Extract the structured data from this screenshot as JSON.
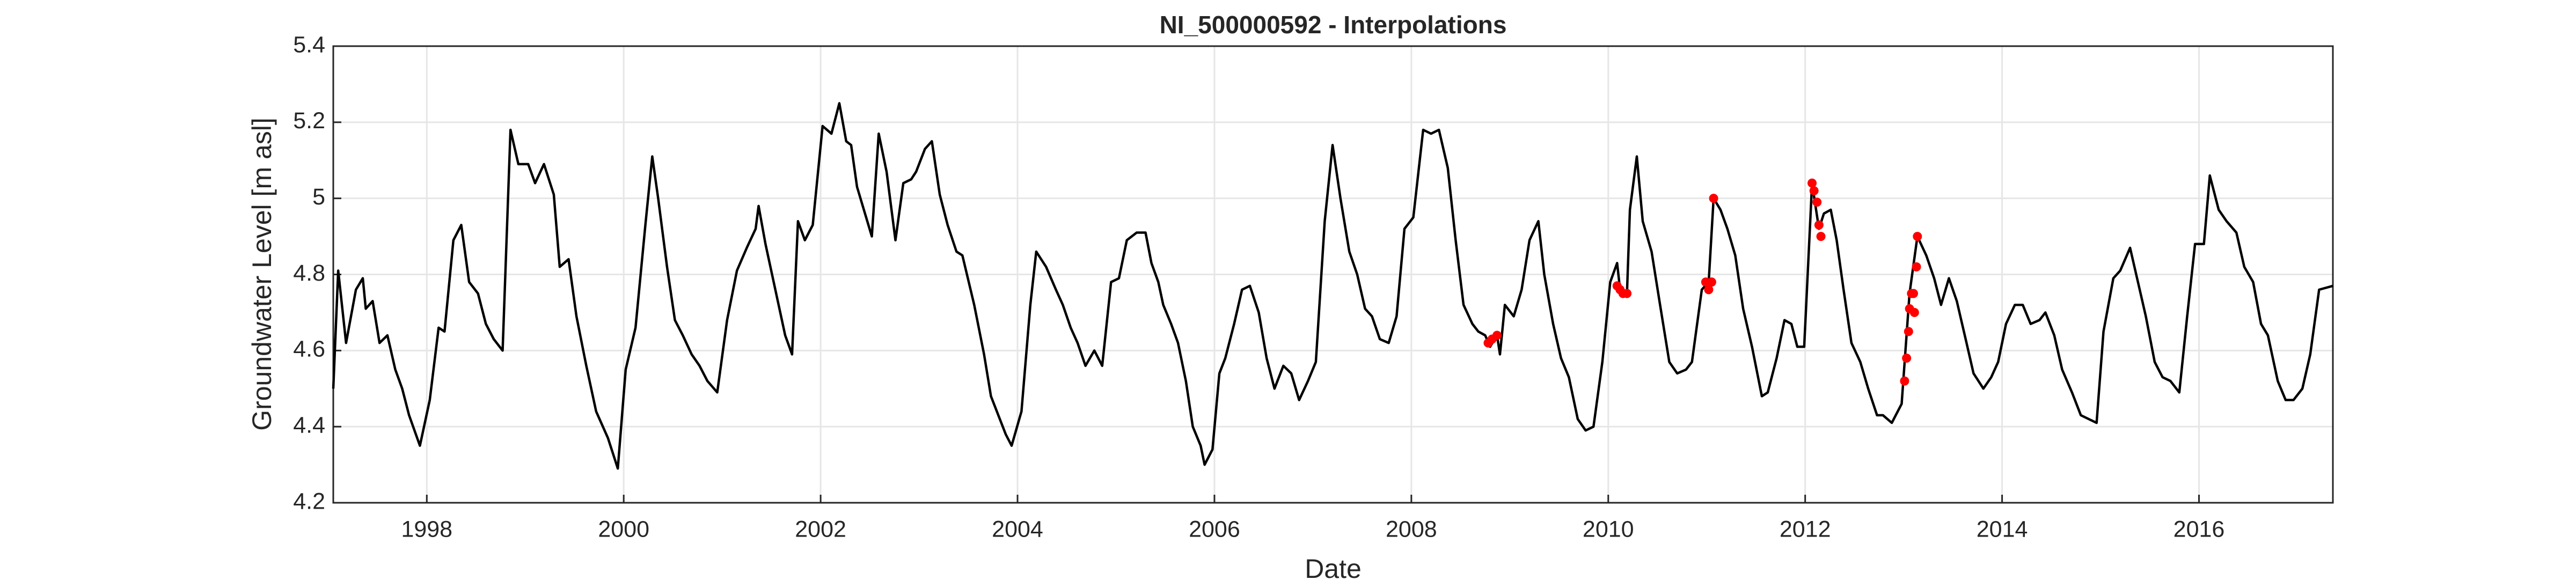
{
  "chart_data": {
    "type": "line",
    "title": "NI_500000592 - Interpolations",
    "x_label": "Date",
    "y_label": "Groundwater Level [m asl]",
    "xlim": [
      1997.05,
      2017.36
    ],
    "xticks": [
      1998,
      2000,
      2002,
      2004,
      2006,
      2008,
      2010,
      2012,
      2014,
      2016
    ],
    "ylim": [
      4.2,
      5.4
    ],
    "yticks": [
      4.2,
      4.4,
      4.6,
      4.8,
      5,
      5.2,
      5.4
    ],
    "grid": true,
    "series": [
      {
        "color": "#000000",
        "marker": "none",
        "x": [
          1997.05,
          1997.1,
          1997.18,
          1997.28,
          1997.35,
          1997.38,
          1997.45,
          1997.52,
          1997.6,
          1997.68,
          1997.75,
          1997.82,
          1997.93,
          1998.03,
          1998.12,
          1998.18,
          1998.27,
          1998.35,
          1998.43,
          1998.52,
          1998.6,
          1998.68,
          1998.77,
          1998.85,
          1998.93,
          1999.03,
          1999.1,
          1999.19,
          1999.29,
          1999.35,
          1999.44,
          1999.52,
          1999.62,
          1999.72,
          1999.84,
          1999.94,
          2000.02,
          2000.12,
          2000.22,
          2000.29,
          2000.35,
          2000.44,
          2000.52,
          2000.6,
          2000.69,
          2000.77,
          2000.85,
          2000.95,
          2001.05,
          2001.15,
          2001.25,
          2001.34,
          2001.37,
          2001.44,
          2001.54,
          2001.64,
          2001.71,
          2001.77,
          2001.84,
          2001.92,
          2002.02,
          2002.11,
          2002.19,
          2002.26,
          2002.31,
          2002.37,
          2002.52,
          2002.59,
          2002.67,
          2002.76,
          2002.84,
          2002.92,
          2002.97,
          2003.06,
          2003.13,
          2003.21,
          2003.29,
          2003.38,
          2003.44,
          2003.56,
          2003.66,
          2003.73,
          2003.79,
          2003.88,
          2003.94,
          2004.04,
          2004.13,
          2004.19,
          2004.29,
          2004.39,
          2004.46,
          2004.54,
          2004.61,
          2004.69,
          2004.78,
          2004.86,
          2004.95,
          2005.03,
          2005.11,
          2005.21,
          2005.3,
          2005.36,
          2005.43,
          2005.48,
          2005.56,
          2005.63,
          2005.71,
          2005.78,
          2005.86,
          2005.9,
          2005.98,
          2006.05,
          2006.11,
          2006.2,
          2006.28,
          2006.36,
          2006.45,
          2006.53,
          2006.61,
          2006.7,
          2006.78,
          2006.86,
          2006.95,
          2007.03,
          2007.12,
          2007.2,
          2007.28,
          2007.37,
          2007.45,
          2007.53,
          2007.6,
          2007.68,
          2007.77,
          2007.85,
          2007.93,
          2008.02,
          2008.12,
          2008.2,
          2008.28,
          2008.37,
          2008.45,
          2008.53,
          2008.62,
          2008.68,
          2008.75,
          2008.8,
          2008.87,
          2008.9,
          2008.95,
          2009.04,
          2009.12,
          2009.2,
          2009.29,
          2009.35,
          2009.44,
          2009.52,
          2009.6,
          2009.69,
          2009.77,
          2009.85,
          2009.94,
          2010.02,
          2010.09,
          2010.12,
          2010.19,
          2010.22,
          2010.29,
          2010.35,
          2010.44,
          2010.52,
          2010.62,
          2010.7,
          2010.79,
          2010.85,
          2010.95,
          2011.02,
          2011.07,
          2011.14,
          2011.21,
          2011.29,
          2011.37,
          2011.46,
          2011.56,
          2011.62,
          2011.71,
          2011.79,
          2011.86,
          2011.92,
          2011.99,
          2012.07,
          2012.14,
          2012.19,
          2012.26,
          2012.32,
          2012.39,
          2012.47,
          2012.56,
          2012.64,
          2012.73,
          2012.79,
          2012.88,
          2012.98,
          2013.06,
          2013.14,
          2013.23,
          2013.31,
          2013.38,
          2013.46,
          2013.54,
          2013.63,
          2013.71,
          2013.81,
          2013.89,
          2013.96,
          2014.04,
          2014.13,
          2014.21,
          2014.29,
          2014.38,
          2014.44,
          2014.53,
          2014.61,
          2014.71,
          2014.8,
          2014.88,
          2014.96,
          2015.03,
          2015.13,
          2015.2,
          2015.3,
          2015.38,
          2015.46,
          2015.55,
          2015.63,
          2015.71,
          2015.8,
          2015.88,
          2015.96,
          2016.05,
          2016.11,
          2016.2,
          2016.28,
          2016.38,
          2016.46,
          2016.55,
          2016.63,
          2016.7,
          2016.8,
          2016.88,
          2016.96,
          2017.05,
          2017.13,
          2017.22,
          2017.36
        ],
        "values": [
          4.5,
          4.81,
          4.62,
          4.76,
          4.79,
          4.71,
          4.73,
          4.62,
          4.64,
          4.55,
          4.5,
          4.43,
          4.35,
          4.47,
          4.66,
          4.65,
          4.89,
          4.93,
          4.78,
          4.75,
          4.67,
          4.63,
          4.6,
          5.18,
          5.09,
          5.09,
          5.04,
          5.09,
          5.01,
          4.82,
          4.84,
          4.69,
          4.56,
          4.44,
          4.37,
          4.29,
          4.55,
          4.66,
          4.93,
          5.11,
          5.0,
          4.82,
          4.68,
          4.64,
          4.59,
          4.56,
          4.52,
          4.49,
          4.68,
          4.81,
          4.87,
          4.92,
          4.98,
          4.88,
          4.76,
          4.64,
          4.59,
          4.94,
          4.89,
          4.93,
          5.19,
          5.17,
          5.25,
          5.15,
          5.14,
          5.03,
          4.9,
          5.17,
          5.07,
          4.89,
          5.04,
          5.05,
          5.07,
          5.13,
          5.15,
          5.01,
          4.93,
          4.86,
          4.85,
          4.72,
          4.59,
          4.48,
          4.44,
          4.38,
          4.35,
          4.44,
          4.72,
          4.86,
          4.82,
          4.76,
          4.72,
          4.66,
          4.62,
          4.56,
          4.6,
          4.56,
          4.78,
          4.79,
          4.89,
          4.91,
          4.91,
          4.83,
          4.78,
          4.72,
          4.67,
          4.62,
          4.52,
          4.4,
          4.35,
          4.3,
          4.34,
          4.54,
          4.58,
          4.67,
          4.76,
          4.77,
          4.7,
          4.58,
          4.5,
          4.56,
          4.54,
          4.47,
          4.52,
          4.57,
          4.94,
          5.14,
          5.0,
          4.86,
          4.8,
          4.71,
          4.69,
          4.63,
          4.62,
          4.69,
          4.92,
          4.95,
          5.18,
          5.17,
          5.18,
          5.08,
          4.89,
          4.72,
          4.67,
          4.65,
          4.64,
          4.61,
          4.64,
          4.59,
          4.72,
          4.69,
          4.76,
          4.89,
          4.94,
          4.8,
          4.67,
          4.58,
          4.53,
          4.42,
          4.39,
          4.4,
          4.57,
          4.78,
          4.83,
          4.76,
          4.75,
          4.97,
          5.11,
          4.94,
          4.86,
          4.73,
          4.57,
          4.54,
          4.55,
          4.57,
          4.76,
          4.78,
          5.0,
          4.97,
          4.92,
          4.85,
          4.71,
          4.61,
          4.48,
          4.49,
          4.58,
          4.68,
          4.67,
          4.61,
          4.61,
          5.04,
          4.92,
          4.96,
          4.97,
          4.89,
          4.76,
          4.62,
          4.57,
          4.5,
          4.43,
          4.43,
          4.41,
          4.46,
          4.75,
          4.9,
          4.85,
          4.79,
          4.72,
          4.79,
          4.73,
          4.63,
          4.54,
          4.5,
          4.53,
          4.57,
          4.67,
          4.72,
          4.72,
          4.67,
          4.68,
          4.7,
          4.64,
          4.55,
          4.49,
          4.43,
          4.42,
          4.41,
          4.65,
          4.79,
          4.81,
          4.87,
          4.78,
          4.69,
          4.57,
          4.53,
          4.52,
          4.49,
          4.69,
          4.88,
          4.88,
          5.06,
          4.97,
          4.94,
          4.91,
          4.82,
          4.78,
          4.67,
          4.64,
          4.52,
          4.47,
          4.47,
          4.5,
          4.59,
          4.76,
          4.77
        ]
      },
      {
        "color": "#ff0000",
        "marker": "dot",
        "x": [
          2008.78,
          2008.82,
          2008.87,
          2010.09,
          2010.12,
          2010.15,
          2010.19,
          2010.99,
          2011.02,
          2011.05,
          2011.07,
          2012.07,
          2012.09,
          2012.12,
          2012.14,
          2012.16,
          2013.01,
          2013.03,
          2013.05,
          2013.06,
          2013.08,
          2013.1,
          2013.11,
          2013.13,
          2013.14
        ],
        "values": [
          4.62,
          4.63,
          4.64,
          4.77,
          4.76,
          4.75,
          4.75,
          4.78,
          4.76,
          4.78,
          5.0,
          5.04,
          5.02,
          4.99,
          4.93,
          4.9,
          4.52,
          4.58,
          4.65,
          4.71,
          4.75,
          4.75,
          4.7,
          4.82,
          4.9
        ]
      }
    ]
  }
}
